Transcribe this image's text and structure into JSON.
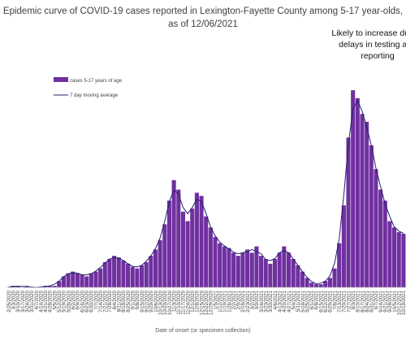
{
  "chart_data": {
    "type": "bar",
    "title": "Epidemic curve of COVID-19 cases reported in Lexington-Fayette County among 5-17 year-olds, as of 12/06/2021",
    "annotation": "Likely to increase due to delays in testing and reporting",
    "xlabel": "Date of onset (or specimen collection)",
    "ylabel": "",
    "grid": false,
    "legend_position": "top-left",
    "bar_color": "#7030A0",
    "line_color": "#1F1F6B",
    "series": [
      {
        "name": "cases 5-17 years of age",
        "kind": "bar"
      },
      {
        "name": "7 day moving average",
        "kind": "line"
      }
    ],
    "x_tick_labels": [
      "2/25/2020",
      "3/3/2020",
      "3/10/2020",
      "3/17/2020",
      "3/24/2020",
      "3/31/2020",
      "4/7/2020",
      "4/14/2020",
      "4/21/2020",
      "4/28/2020",
      "5/5/2020",
      "5/12/2020",
      "5/19/2020",
      "5/26/2020",
      "6/2/2020",
      "6/9/2020",
      "6/16/2020",
      "6/23/2020",
      "6/30/2020",
      "7/7/2020",
      "7/14/2020",
      "7/21/2020",
      "7/28/2020",
      "8/4/2020",
      "8/11/2020",
      "8/18/2020",
      "8/25/2020",
      "9/1/2020",
      "9/8/2020",
      "9/15/2020",
      "9/22/2020",
      "9/29/2020",
      "10/6/2020",
      "10/13/2020",
      "10/20/2020",
      "10/27/2020",
      "11/3/2020",
      "11/10/2020",
      "11/17/2020",
      "11/24/2020",
      "12/1/2020",
      "12/8/2020",
      "12/15/2020",
      "12/22/2020",
      "12/29/2020",
      "1/5/2021",
      "1/12/2021",
      "1/19/2021",
      "1/26/2021",
      "2/2/2021",
      "2/9/2021",
      "2/16/2021",
      "2/23/2021",
      "3/2/2021",
      "3/9/2021",
      "3/16/2021",
      "3/23/2021",
      "3/30/2021",
      "4/6/2021",
      "4/13/2021",
      "4/20/2021",
      "4/27/2021",
      "5/4/2021",
      "5/11/2021",
      "5/18/2021",
      "5/25/2021",
      "6/1/2021",
      "6/8/2021",
      "6/15/2021",
      "6/22/2021",
      "6/29/2021",
      "7/6/2021",
      "7/13/2021",
      "7/20/2021",
      "7/27/2021",
      "8/3/2021",
      "8/10/2021",
      "8/17/2021",
      "8/24/2021",
      "8/31/2021",
      "9/7/2021",
      "9/14/2021",
      "9/21/2021",
      "9/28/2021",
      "10/5/2021",
      "10/12/2021",
      "10/19/2021"
    ],
    "weekly_values": [
      0,
      1,
      1,
      0,
      1,
      0,
      0,
      0,
      1,
      1,
      1,
      4,
      7,
      9,
      10,
      9,
      8,
      7,
      9,
      10,
      12,
      16,
      18,
      20,
      19,
      17,
      15,
      13,
      12,
      14,
      16,
      20,
      24,
      30,
      40,
      55,
      68,
      62,
      48,
      42,
      50,
      60,
      58,
      45,
      38,
      32,
      28,
      26,
      25,
      22,
      20,
      22,
      24,
      22,
      26,
      20,
      18,
      15,
      18,
      22,
      26,
      22,
      18,
      14,
      10,
      6,
      3,
      2,
      2,
      4,
      6,
      12,
      28,
      52,
      95,
      125,
      120,
      110,
      105,
      90,
      75,
      62,
      55,
      42,
      38,
      35,
      34
    ],
    "ylim": [
      0,
      140
    ]
  }
}
